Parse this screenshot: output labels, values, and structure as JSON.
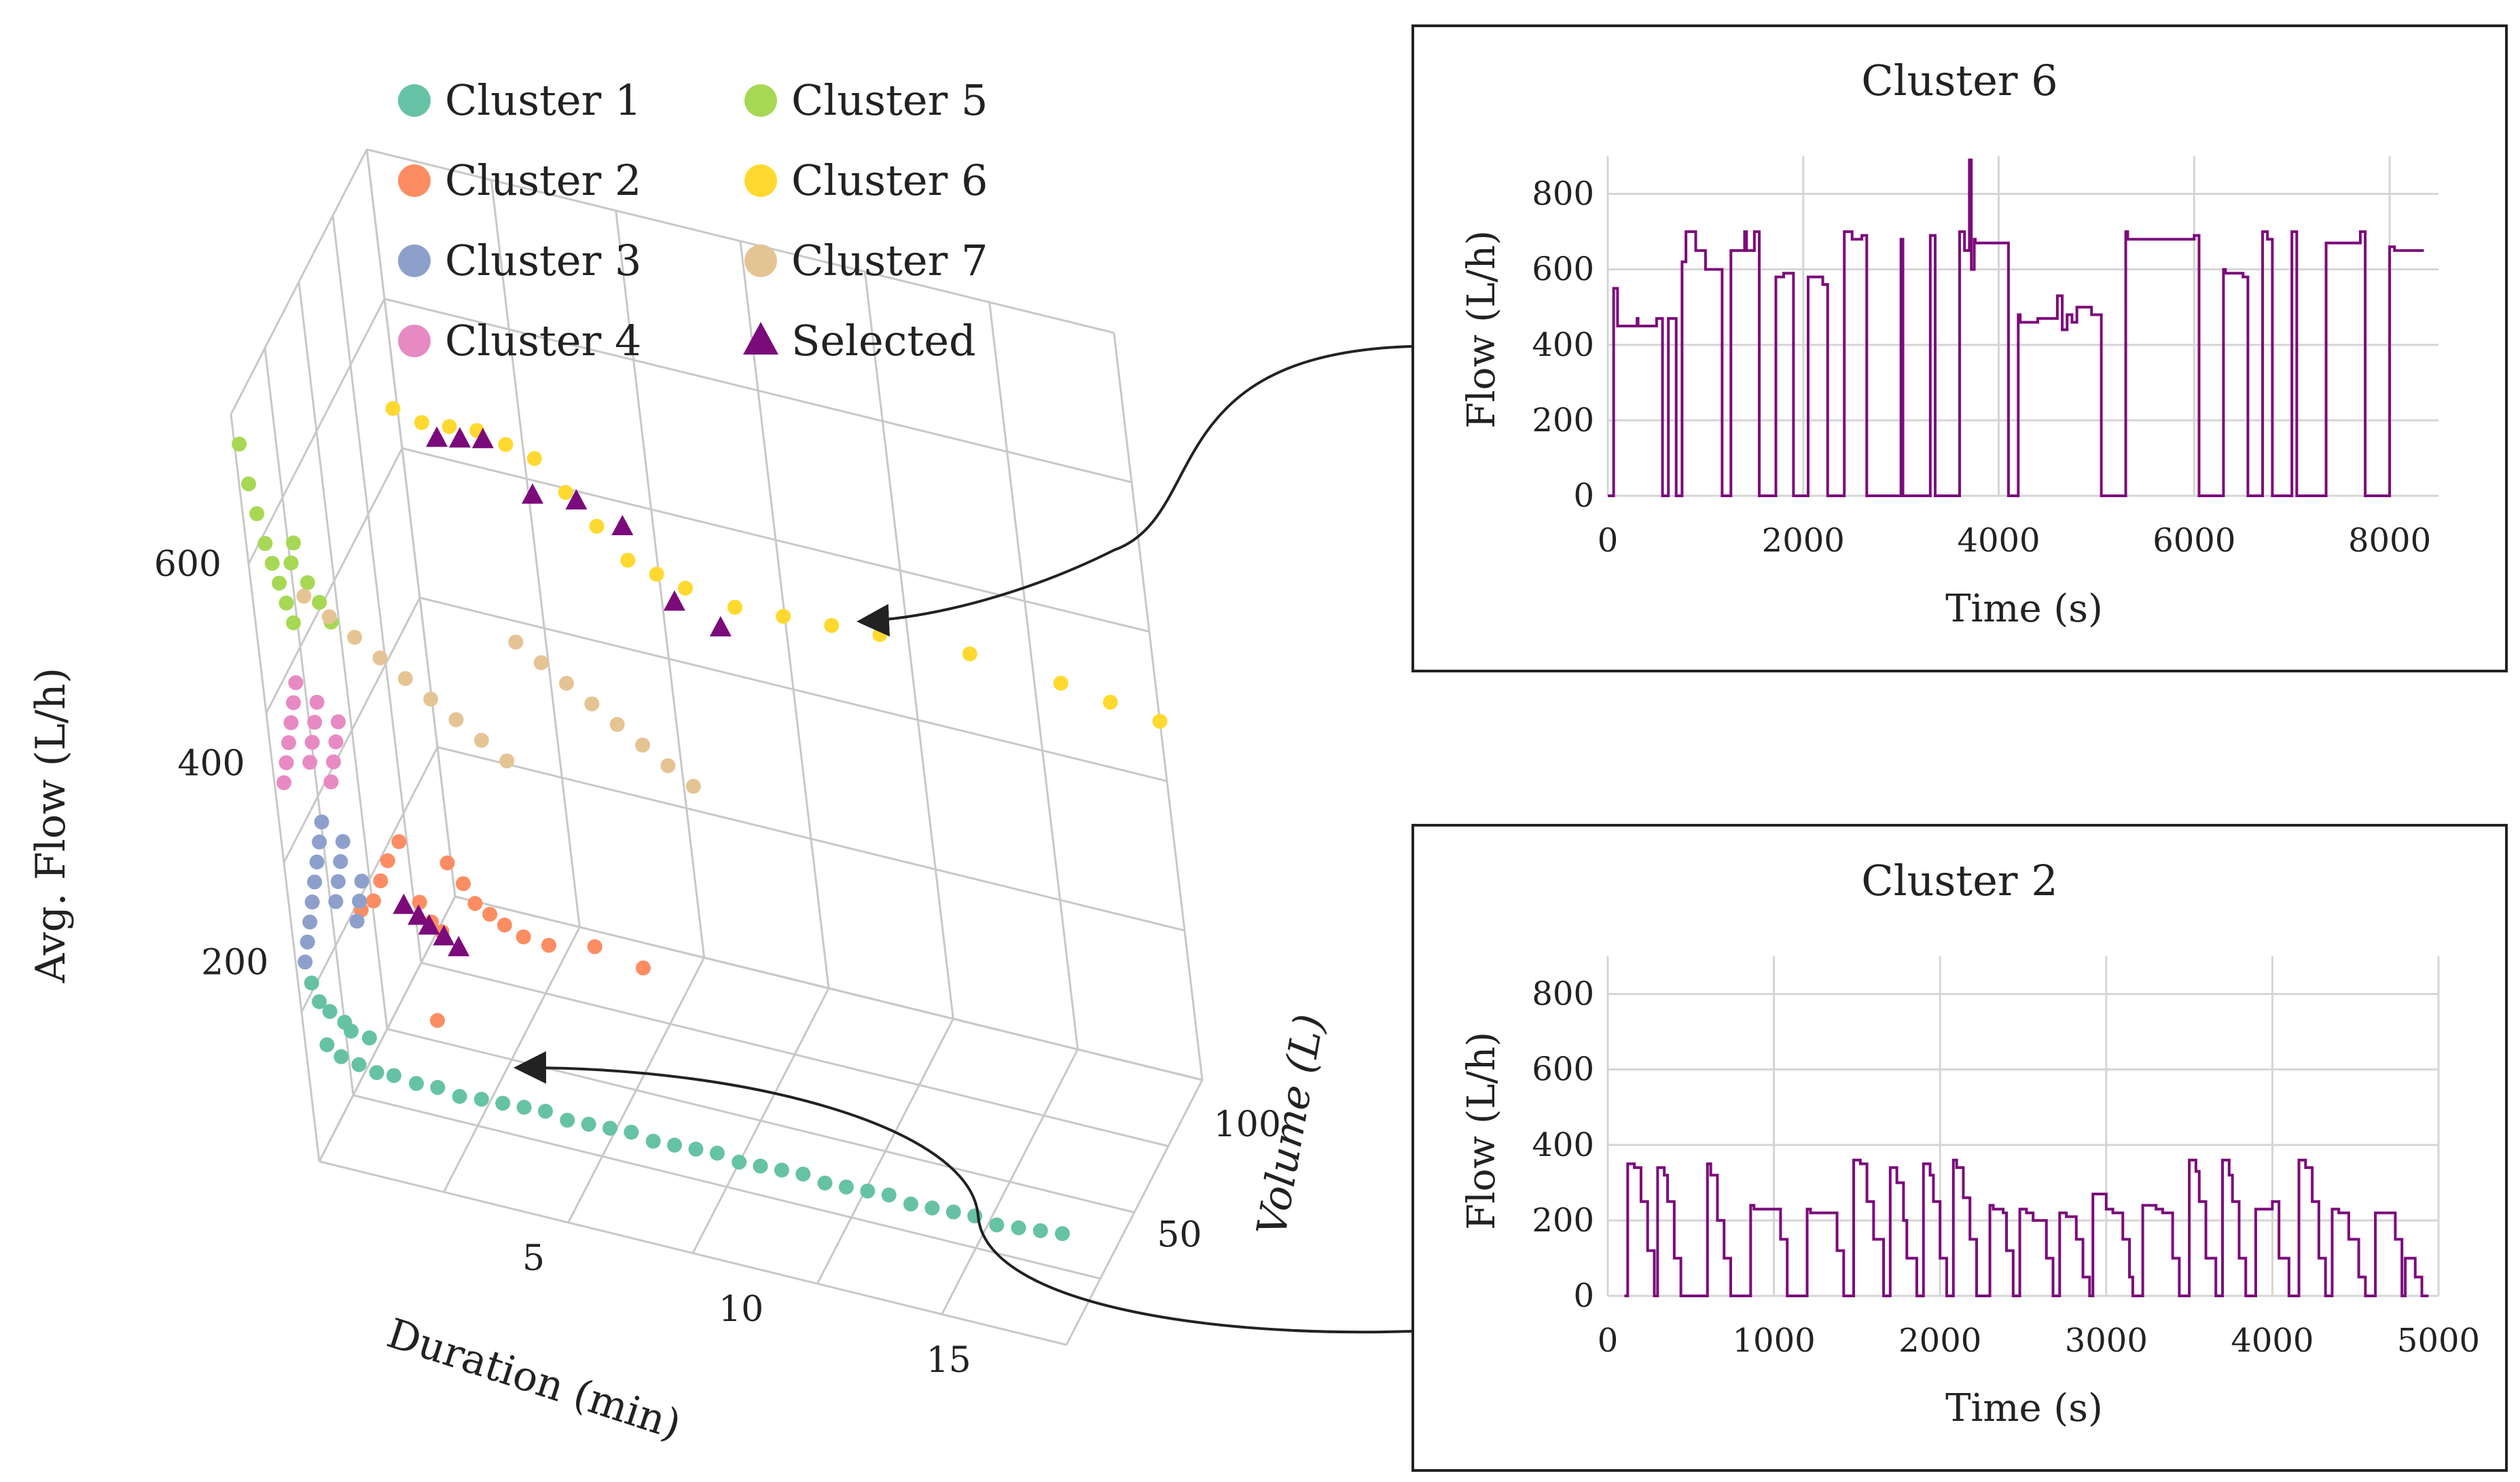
{
  "figure": {
    "legend": {
      "items": [
        {
          "label": "Cluster 1",
          "color": "#66c2a5",
          "marker": "circle"
        },
        {
          "label": "Cluster 2",
          "color": "#fc8d62",
          "marker": "circle"
        },
        {
          "label": "Cluster 3",
          "color": "#8da0cb",
          "marker": "circle"
        },
        {
          "label": "Cluster 4",
          "color": "#e78ac3",
          "marker": "circle"
        },
        {
          "label": "Cluster 5",
          "color": "#a6d854",
          "marker": "circle"
        },
        {
          "label": "Cluster 6",
          "color": "#ffd92f",
          "marker": "circle"
        },
        {
          "label": "Cluster 7",
          "color": "#e5c494",
          "marker": "circle"
        },
        {
          "label": "Selected",
          "color": "#7b0a7b",
          "marker": "triangle"
        }
      ]
    }
  },
  "chart_data": [
    {
      "type": "scatter",
      "title": "",
      "dimensions": "3d",
      "xlabel": "Duration (min)",
      "ylabel": "Volume (L)",
      "zlabel": "Avg. Flow (L/h)",
      "xticks": [
        5,
        10,
        15
      ],
      "yticks": [
        50,
        100
      ],
      "zticks": [
        200,
        400,
        600
      ],
      "xlim": [
        0,
        18
      ],
      "ylim": [
        0,
        120
      ],
      "zlim": [
        0,
        750
      ],
      "series": [
        {
          "name": "Cluster 1",
          "color": "#66c2a5",
          "x": [
            0.5,
            0.8,
            1.2,
            1.6,
            2.0,
            2.5,
            3.0,
            3.5,
            4.0,
            4.5,
            5.0,
            5.5,
            6.0,
            6.5,
            7.0,
            7.5,
            8.0,
            8.5,
            9.0,
            9.5,
            10.0,
            10.5,
            11.0,
            11.5,
            12.0,
            12.5,
            13.0,
            13.5,
            14.0,
            14.5,
            15.0,
            15.5,
            16.0,
            16.5,
            17.0,
            17.5,
            0.3,
            0.4,
            0.6,
            0.9,
            1.0,
            1.4
          ],
          "y": [
            1,
            1.5,
            2,
            2.5,
            3,
            4,
            4.5,
            5,
            6,
            6.5,
            7,
            7.5,
            8,
            8.5,
            9,
            9.5,
            10,
            10.5,
            11,
            11.5,
            12,
            12.5,
            13,
            13.5,
            14,
            14.5,
            15,
            15.5,
            16,
            16.5,
            17,
            17.5,
            18,
            19,
            20,
            21,
            1,
            2,
            3,
            4,
            5,
            6
          ],
          "z": [
            120,
            110,
            105,
            100,
            100,
            95,
            95,
            90,
            90,
            90,
            90,
            90,
            85,
            85,
            85,
            85,
            80,
            80,
            80,
            80,
            75,
            75,
            75,
            75,
            70,
            70,
            70,
            70,
            65,
            65,
            65,
            65,
            60,
            60,
            60,
            60,
            180,
            160,
            150,
            140,
            130,
            125
          ]
        },
        {
          "name": "Cluster 2",
          "color": "#fc8d62",
          "x": [
            1.5,
            1.8,
            2.0,
            2.2,
            2.5,
            2.8,
            3.0,
            3.2,
            3.5,
            3.8,
            4.0,
            4.3,
            4.6,
            5.0,
            5.5,
            6.5,
            7.5,
            3.0
          ],
          "y": [
            8,
            9,
            10,
            11,
            12,
            13,
            14,
            15,
            16,
            17,
            18,
            19,
            20,
            21,
            24,
            28,
            32,
            10
          ],
          "z": [
            250,
            260,
            280,
            300,
            320,
            260,
            240,
            230,
            300,
            280,
            260,
            250,
            240,
            230,
            220,
            220,
            200,
            150
          ]
        },
        {
          "name": "Cluster 3",
          "color": "#8da0cb",
          "x": [
            0.2,
            0.3,
            0.4,
            0.5,
            0.6,
            0.7,
            0.8,
            0.9,
            1.0,
            1.1,
            1.2,
            1.3,
            1.4,
            1.5,
            1.6
          ],
          "y": [
            1,
            1.5,
            2,
            2.5,
            3,
            3.5,
            4,
            4.5,
            5,
            5.5,
            6,
            6.5,
            7,
            7.5,
            8
          ],
          "z": [
            200,
            220,
            240,
            260,
            280,
            300,
            320,
            340,
            260,
            280,
            300,
            320,
            240,
            260,
            280
          ]
        },
        {
          "name": "Cluster 4",
          "color": "#e78ac3",
          "x": [
            0.2,
            0.3,
            0.4,
            0.5,
            0.6,
            0.7,
            0.8,
            0.9,
            1.0,
            1.1,
            1.2,
            1.3,
            1.4,
            1.5
          ],
          "y": [
            1,
            1.5,
            2,
            2.5,
            3,
            3.5,
            4,
            4.5,
            5,
            5.5,
            6,
            6.5,
            7,
            7.5
          ],
          "z": [
            380,
            400,
            420,
            440,
            460,
            480,
            400,
            420,
            440,
            460,
            380,
            400,
            420,
            440
          ]
        },
        {
          "name": "Cluster 5",
          "color": "#a6d854",
          "x": [
            0.1,
            0.2,
            0.3,
            0.4,
            0.5,
            0.6,
            0.7,
            0.8,
            0.9,
            1.0,
            1.2,
            1.4,
            1.6
          ],
          "y": [
            0.5,
            1,
            1.5,
            2,
            2.5,
            3,
            3.5,
            4,
            4.5,
            5,
            6,
            7,
            8
          ],
          "z": [
            720,
            680,
            650,
            620,
            600,
            580,
            560,
            540,
            600,
            620,
            580,
            560,
            540
          ]
        },
        {
          "name": "Cluster 6",
          "color": "#ffd92f",
          "x": [
            3.0,
            3.5,
            4.0,
            4.5,
            5.0,
            5.5,
            6.0,
            6.5,
            7.0,
            7.5,
            8.0,
            9.0,
            10.0,
            11.0,
            12.0,
            14.0,
            16.0,
            17.0,
            18.0
          ],
          "y": [
            30,
            35,
            40,
            45,
            50,
            55,
            60,
            65,
            70,
            75,
            80,
            85,
            90,
            95,
            100,
            105,
            110,
            115,
            120
          ],
          "z": [
            720,
            700,
            690,
            680,
            660,
            640,
            600,
            560,
            520,
            500,
            480,
            460,
            450,
            440,
            430,
            420,
            400,
            380,
            360
          ]
        },
        {
          "name": "Cluster 7",
          "color": "#e5c494",
          "x": [
            1.0,
            1.5,
            2.0,
            2.5,
            3.0,
            3.5,
            4.0,
            4.5,
            5.0,
            5.5,
            6.0,
            6.5,
            7.0,
            7.5,
            8.0,
            8.5,
            9.0
          ],
          "y": [
            8,
            10,
            12,
            14,
            16,
            18,
            20,
            22,
            24,
            26,
            28,
            30,
            32,
            34,
            36,
            38,
            40
          ],
          "z": [
            560,
            540,
            520,
            500,
            480,
            460,
            440,
            420,
            400,
            520,
            500,
            480,
            460,
            440,
            420,
            400,
            380
          ]
        },
        {
          "name": "Selected",
          "color": "#7b0a7b",
          "marker": "triangle",
          "x": [
            2.5,
            2.8,
            3.0,
            3.3,
            3.6,
            4.0,
            4.5,
            5.0,
            6.0,
            7.0,
            8.0,
            9.0,
            10.0
          ],
          "y": [
            10,
            11,
            12,
            13,
            14,
            30,
            32,
            34,
            36,
            38,
            40,
            42,
            44
          ],
          "z": [
            260,
            250,
            240,
            230,
            220,
            700,
            700,
            700,
            650,
            650,
            630,
            560,
            540
          ]
        }
      ]
    },
    {
      "type": "line",
      "title": "Cluster 6",
      "xlabel": "Time (s)",
      "ylabel": "Flow (L/h)",
      "xlim": [
        0,
        8500
      ],
      "ylim": [
        0,
        900
      ],
      "xticks": [
        0,
        2000,
        4000,
        6000,
        8000
      ],
      "yticks": [
        0,
        200,
        400,
        600,
        800
      ],
      "series": [
        {
          "name": "Flow",
          "color": "#7b0a7b",
          "x": [
            0,
            50,
            60,
            100,
            110,
            300,
            310,
            500,
            560,
            600,
            620,
            700,
            720,
            760,
            800,
            900,
            1000,
            1150,
            1170,
            1200,
            1260,
            1400,
            1420,
            1500,
            1550,
            1700,
            1720,
            1800,
            1820,
            1900,
            1920,
            2050,
            2200,
            2250,
            2300,
            2400,
            2420,
            2500,
            2600,
            2650,
            2700,
            3000,
            3020,
            3300,
            3350,
            3600,
            3650,
            3700,
            3720,
            3750,
            3760,
            4100,
            4150,
            4200,
            4220,
            4400,
            4600,
            4650,
            4700,
            4750,
            4800,
            4950,
            5050,
            5200,
            5250,
            5300,
            5320,
            6000,
            6050,
            6300,
            6320,
            6500,
            6550,
            6650,
            6700,
            6750,
            6800,
            7000,
            7050,
            7300,
            7350,
            7700,
            7750,
            7900,
            8000,
            8050,
            8350
          ],
          "y": [
            0,
            0,
            550,
            450,
            450,
            470,
            450,
            470,
            0,
            0,
            470,
            0,
            0,
            620,
            700,
            650,
            600,
            600,
            0,
            0,
            650,
            700,
            650,
            700,
            0,
            0,
            580,
            590,
            590,
            0,
            0,
            580,
            560,
            0,
            0,
            0,
            700,
            680,
            690,
            0,
            0,
            680,
            0,
            690,
            0,
            700,
            650,
            890,
            600,
            680,
            670,
            0,
            0,
            480,
            460,
            470,
            530,
            440,
            480,
            460,
            500,
            480,
            0,
            0,
            0,
            700,
            680,
            690,
            0,
            600,
            590,
            580,
            0,
            0,
            700,
            680,
            0,
            700,
            0,
            0,
            670,
            700,
            0,
            0,
            660,
            650,
            650
          ]
        }
      ]
    },
    {
      "type": "line",
      "title": "Cluster 2",
      "xlabel": "Time (s)",
      "ylabel": "Flow (L/h)",
      "xlim": [
        0,
        5000
      ],
      "ylim": [
        0,
        900
      ],
      "xticks": [
        0,
        1000,
        2000,
        3000,
        4000,
        5000
      ],
      "yticks": [
        0,
        200,
        400,
        600,
        800
      ],
      "series": [
        {
          "name": "Flow",
          "color": "#7b0a7b",
          "x": [
            100,
            120,
            160,
            200,
            240,
            280,
            300,
            340,
            360,
            400,
            440,
            480,
            520,
            600,
            620,
            660,
            700,
            740,
            780,
            860,
            880,
            1000,
            1040,
            1080,
            1120,
            1200,
            1220,
            1340,
            1380,
            1420,
            1460,
            1480,
            1520,
            1560,
            1600,
            1660,
            1700,
            1740,
            1780,
            1800,
            1860,
            1900,
            1940,
            1960,
            2000,
            2040,
            2080,
            2100,
            2140,
            2180,
            2220,
            2300,
            2320,
            2380,
            2400,
            2440,
            2480,
            2520,
            2560,
            2640,
            2680,
            2720,
            2760,
            2820,
            2860,
            2900,
            2920,
            3000,
            3040,
            3100,
            3140,
            3160,
            3220,
            3300,
            3340,
            3400,
            3440,
            3500,
            3540,
            3560,
            3600,
            3660,
            3700,
            3740,
            3760,
            3800,
            3840,
            3900,
            3960,
            4000,
            4040,
            4100,
            4160,
            4200,
            4240,
            4280,
            4320,
            4360,
            4400,
            4440,
            4460,
            4520,
            4560,
            4620,
            4660,
            4700,
            4740,
            4780,
            4800,
            4860,
            4900,
            4940
          ],
          "y": [
            0,
            350,
            340,
            250,
            120,
            0,
            340,
            320,
            250,
            100,
            0,
            0,
            0,
            350,
            320,
            200,
            100,
            0,
            0,
            240,
            230,
            230,
            150,
            0,
            0,
            230,
            220,
            220,
            120,
            0,
            0,
            360,
            350,
            250,
            150,
            0,
            340,
            300,
            200,
            100,
            0,
            350,
            320,
            250,
            100,
            0,
            360,
            340,
            260,
            150,
            0,
            240,
            230,
            220,
            120,
            0,
            230,
            220,
            200,
            100,
            0,
            220,
            210,
            150,
            50,
            0,
            270,
            230,
            220,
            150,
            50,
            0,
            240,
            230,
            220,
            100,
            0,
            360,
            330,
            250,
            100,
            0,
            360,
            320,
            250,
            100,
            0,
            230,
            230,
            250,
            100,
            0,
            360,
            340,
            250,
            100,
            0,
            230,
            220,
            220,
            150,
            50,
            0,
            220,
            220,
            220,
            150,
            0,
            100,
            50,
            0,
            0
          ]
        }
      ]
    }
  ]
}
